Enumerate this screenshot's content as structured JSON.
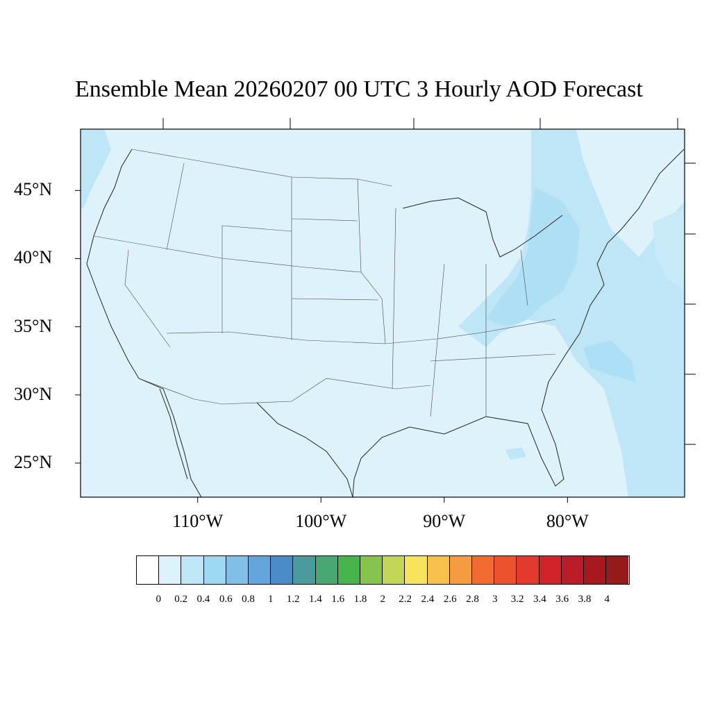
{
  "title": "Ensemble Mean 20260207 00 UTC 3 Hourly AOD Forecast",
  "map": {
    "lon_range": [
      -119.5,
      -70.5
    ],
    "lat_range": [
      22.5,
      49.5
    ],
    "background_color": "#ddf2fb",
    "plume_color": "#bfe6f7",
    "dense_color": "#9fd8f3",
    "lat_labels": [
      {
        "lat": 45,
        "label": "45°N"
      },
      {
        "lat": 40,
        "label": "40°N"
      },
      {
        "lat": 35,
        "label": "35°N"
      },
      {
        "lat": 30,
        "label": "30°N"
      },
      {
        "lat": 25,
        "label": "25°N"
      }
    ],
    "lon_labels": [
      {
        "lon": -110,
        "label": "110°W"
      },
      {
        "lon": -100,
        "label": "100°W"
      },
      {
        "lon": -90,
        "label": "90°W"
      },
      {
        "lon": -80,
        "label": "80°W"
      }
    ]
  },
  "colorbar": {
    "colors": [
      "#ffffff",
      "#ddf2fb",
      "#bfe6f7",
      "#9fd8f3",
      "#80bfe6",
      "#64a6dc",
      "#4a8cc8",
      "#4a9a9e",
      "#48a874",
      "#46b44a",
      "#86c44c",
      "#c4d658",
      "#f8e45c",
      "#f7c04c",
      "#f59c40",
      "#f26c32",
      "#ec522e",
      "#e23a2c",
      "#d2222a",
      "#bc1c28",
      "#a8181f",
      "#951a1c"
    ],
    "tick_labels": [
      "0",
      "0.2",
      "0.4",
      "0.6",
      "0.8",
      "1",
      "1.2",
      "1.4",
      "1.6",
      "1.8",
      "2",
      "2.2",
      "2.4",
      "2.6",
      "2.8",
      "3",
      "3.2",
      "3.4",
      "3.6",
      "3.8",
      "4"
    ]
  }
}
